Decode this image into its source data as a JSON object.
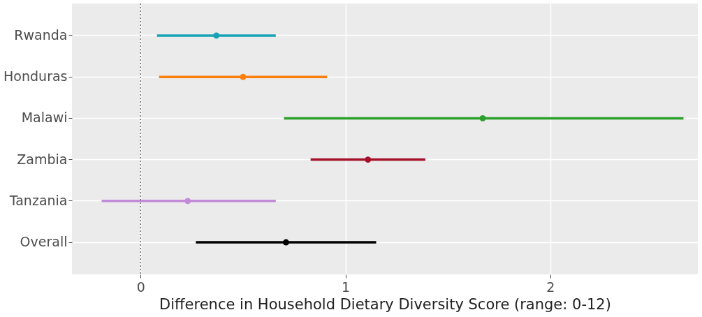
{
  "chart_data": {
    "type": "scatter",
    "orientation": "horizontal",
    "xlabel": "Difference in Household Dietary Diversity Score (range: 0-12)",
    "categories": [
      "Rwanda",
      "Honduras",
      "Malawi",
      "Zambia",
      "Tanzania",
      "Overall"
    ],
    "values": [
      0.37,
      0.5,
      1.67,
      1.11,
      0.23,
      0.71
    ],
    "errors": [
      [
        0.08,
        0.66
      ],
      [
        0.09,
        0.91
      ],
      [
        0.7,
        2.65
      ],
      [
        0.83,
        1.39
      ],
      [
        -0.19,
        0.66
      ],
      [
        0.27,
        1.15
      ]
    ],
    "colors": [
      "#17a3b5",
      "#ff7f0e",
      "#2ca02c",
      "#a50f2a",
      "#c38ad9",
      "#000000"
    ],
    "xlim": [
      -0.335,
      2.72
    ],
    "xticks": [
      0,
      1,
      2
    ],
    "ref_lines": [
      {
        "axis": "x",
        "value": 0,
        "color": "#555555",
        "line_style": "dotted"
      }
    ],
    "grid": true,
    "marker": "circle"
  }
}
